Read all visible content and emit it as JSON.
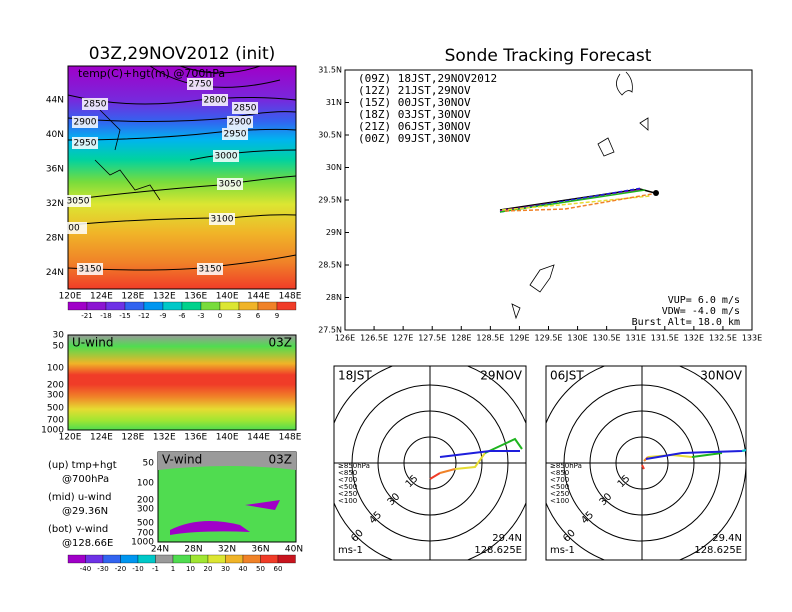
{
  "left_top": {
    "title": "03Z,29NOV2012 (init)",
    "label": "temp(C)+hgt(m) @700hPa",
    "yticks": [
      "44N",
      "40N",
      "36N",
      "32N",
      "28N",
      "24N"
    ],
    "xticks": [
      "120E",
      "124E",
      "128E",
      "132E",
      "136E",
      "140E",
      "144E",
      "148E"
    ],
    "contours": [
      "2750",
      "2800",
      "2850",
      "2850",
      "2900",
      "2900",
      "2950",
      "2950",
      "3000",
      "3050",
      "3050",
      "3100",
      "00",
      "3150",
      "3150"
    ],
    "colorbar": [
      "-21",
      "-18",
      "-15",
      "-12",
      "-9",
      "-6",
      "-3",
      "0",
      "3",
      "6",
      "9"
    ]
  },
  "left_mid": {
    "title": "U-wind",
    "time": "03Z",
    "yticks": [
      "30",
      "50",
      "100",
      "200",
      "300",
      "500",
      "700",
      "1000"
    ],
    "xticks": [
      "120E",
      "124E",
      "128E",
      "132E",
      "136E",
      "140E",
      "144E",
      "148E"
    ]
  },
  "left_bot": {
    "title": "V-wind",
    "time": "03Z",
    "yticks": [
      "50",
      "100",
      "200",
      "300",
      "500",
      "700",
      "1000"
    ],
    "xticks": [
      "24N",
      "28N",
      "32N",
      "36N",
      "40N"
    ],
    "notes": [
      "(up) tmp+hgt",
      "@700hPa",
      "(mid) u-wind",
      "@29.36N",
      "(bot) v-wind",
      "@128.66E"
    ],
    "colorbar": [
      "-40",
      "-30",
      "-20",
      "-10",
      "-1",
      "1",
      "10",
      "20",
      "30",
      "40",
      "50",
      "60"
    ]
  },
  "track": {
    "title": "Sonde Tracking Forecast",
    "legend": [
      {
        "label": "(09Z) 18JST,29NOV2012",
        "color": "#000000"
      },
      {
        "label": "(12Z) 21JST,29NOV",
        "color": "#b400b4"
      },
      {
        "label": "(15Z) 00JST,30NOV",
        "color": "#1e1edc"
      },
      {
        "label": "(18Z) 03JST,30NOV",
        "color": "#1eb41e"
      },
      {
        "label": "(21Z) 06JST,30NOV",
        "color": "#e6dc32"
      },
      {
        "label": "(00Z) 09JST,30NOV",
        "color": "#f08228"
      }
    ],
    "yticks": [
      "31.5N",
      "31N",
      "30.5N",
      "30N",
      "29.5N",
      "29N",
      "28.5N",
      "28N",
      "27.5N"
    ],
    "xticks": [
      "126E",
      "126.5E",
      "127E",
      "127.5E",
      "128E",
      "128.5E",
      "129E",
      "129.5E",
      "130E",
      "130.5E",
      "131E",
      "131.5E",
      "132E",
      "132.5E",
      "133E"
    ],
    "params": [
      "VUP= 6.0 m/s",
      "VDW= -4.0 m/s",
      "Burst Alt= 18.0 km"
    ]
  },
  "polar": [
    {
      "time": "18JST",
      "date": "29NOV",
      "rings": [
        "15",
        "30",
        "45",
        "60"
      ],
      "levels": [
        "≥850hPa",
        "<850",
        "<700",
        "<500",
        "<250",
        "<100"
      ],
      "unit": "ms-1",
      "lat": "29.4N",
      "lon": "128.625E"
    },
    {
      "time": "06JST",
      "date": "30NOV",
      "rings": [
        "15",
        "30",
        "45",
        "60"
      ],
      "levels": [
        "≥850hPa",
        "<850",
        "<700",
        "<500",
        "<250",
        "<100"
      ],
      "unit": "ms-1",
      "lat": "29.4N",
      "lon": "128.625E"
    }
  ]
}
